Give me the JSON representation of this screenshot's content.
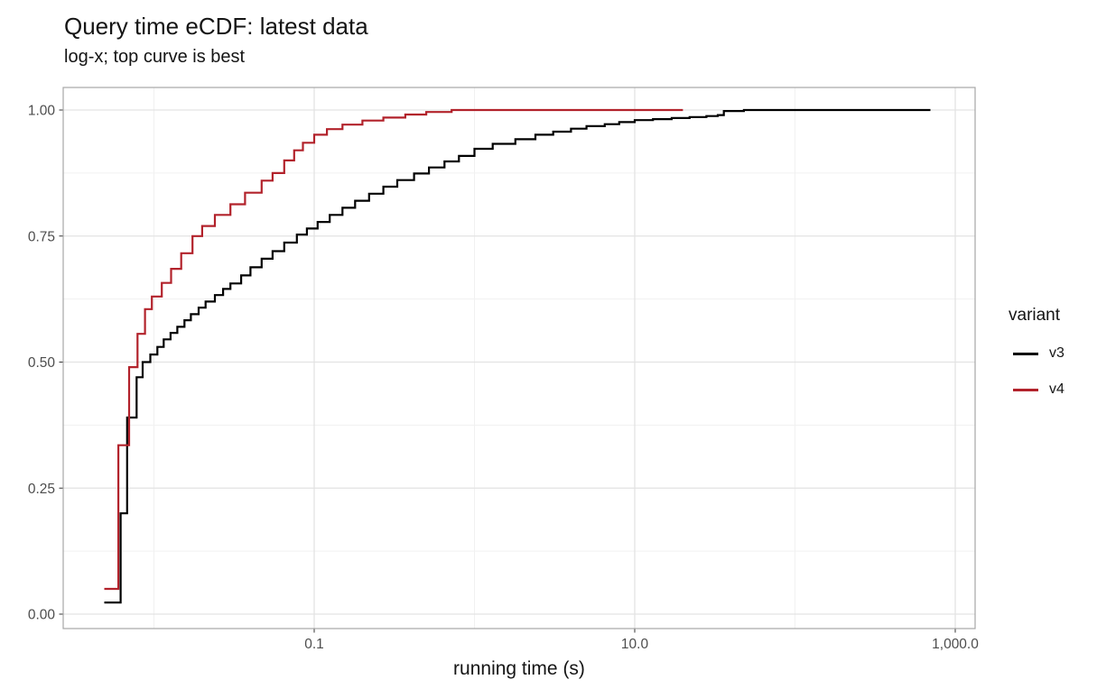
{
  "chart_data": {
    "type": "line",
    "subtype": "ecdf-step",
    "title": "Query time eCDF: latest data",
    "subtitle": "log-x; top curve is best",
    "xlabel": "running time (s)",
    "ylabel": "",
    "x_scale": "log10",
    "xlim": [
      0.0027,
      1330
    ],
    "ylim": [
      0,
      1
    ],
    "grid": "on",
    "x_axis": {
      "ticks": [
        {
          "value": 0.1,
          "label": "0.1"
        },
        {
          "value": 10,
          "label": "10.0"
        },
        {
          "value": 1000,
          "label": "1,000.0"
        }
      ],
      "minor_ticks": [
        0.01,
        1,
        100
      ]
    },
    "y_axis": {
      "ticks": [
        {
          "value": 0.0,
          "label": "0.00"
        },
        {
          "value": 0.25,
          "label": "0.25"
        },
        {
          "value": 0.5,
          "label": "0.50"
        },
        {
          "value": 0.75,
          "label": "0.75"
        },
        {
          "value": 1.0,
          "label": "1.00"
        }
      ],
      "minor_ticks": [
        0.125,
        0.375,
        0.625,
        0.875
      ]
    },
    "legend": {
      "title": "variant",
      "position": "right",
      "items": [
        {
          "label": "v3",
          "color": "#000000"
        },
        {
          "label": "v4",
          "color": "#B2222B"
        }
      ]
    },
    "series": [
      {
        "name": "v3",
        "color": "#000000",
        "points": [
          [
            0.0049,
            0.023
          ],
          [
            0.0062,
            0.2
          ],
          [
            0.0068,
            0.39
          ],
          [
            0.0078,
            0.47
          ],
          [
            0.0085,
            0.5
          ],
          [
            0.0095,
            0.515
          ],
          [
            0.0105,
            0.53
          ],
          [
            0.0115,
            0.545
          ],
          [
            0.0127,
            0.558
          ],
          [
            0.014,
            0.57
          ],
          [
            0.0155,
            0.583
          ],
          [
            0.017,
            0.595
          ],
          [
            0.019,
            0.608
          ],
          [
            0.021,
            0.62
          ],
          [
            0.024,
            0.633
          ],
          [
            0.027,
            0.645
          ],
          [
            0.03,
            0.656
          ],
          [
            0.035,
            0.672
          ],
          [
            0.04,
            0.688
          ],
          [
            0.047,
            0.705
          ],
          [
            0.055,
            0.72
          ],
          [
            0.065,
            0.737
          ],
          [
            0.078,
            0.753
          ],
          [
            0.09,
            0.765
          ],
          [
            0.105,
            0.778
          ],
          [
            0.125,
            0.792
          ],
          [
            0.15,
            0.806
          ],
          [
            0.18,
            0.82
          ],
          [
            0.22,
            0.834
          ],
          [
            0.27,
            0.848
          ],
          [
            0.33,
            0.861
          ],
          [
            0.42,
            0.874
          ],
          [
            0.52,
            0.886
          ],
          [
            0.65,
            0.898
          ],
          [
            0.8,
            0.909
          ],
          [
            1.0,
            0.923
          ],
          [
            1.3,
            0.933
          ],
          [
            1.8,
            0.942
          ],
          [
            2.4,
            0.951
          ],
          [
            3.1,
            0.957
          ],
          [
            4.0,
            0.963
          ],
          [
            5.0,
            0.968
          ],
          [
            6.5,
            0.972
          ],
          [
            8.0,
            0.976
          ],
          [
            10,
            0.98
          ],
          [
            13,
            0.982
          ],
          [
            17,
            0.984
          ],
          [
            22,
            0.986
          ],
          [
            28,
            0.988
          ],
          [
            33,
            0.99
          ],
          [
            36,
            0.998
          ],
          [
            48,
            1.0
          ],
          [
            700,
            1.0
          ]
        ]
      },
      {
        "name": "v4",
        "color": "#B2222B",
        "points": [
          [
            0.0049,
            0.05
          ],
          [
            0.006,
            0.335
          ],
          [
            0.007,
            0.49
          ],
          [
            0.0079,
            0.556
          ],
          [
            0.0088,
            0.605
          ],
          [
            0.0097,
            0.63
          ],
          [
            0.0112,
            0.657
          ],
          [
            0.0128,
            0.685
          ],
          [
            0.0148,
            0.716
          ],
          [
            0.0174,
            0.75
          ],
          [
            0.02,
            0.77
          ],
          [
            0.024,
            0.792
          ],
          [
            0.03,
            0.813
          ],
          [
            0.037,
            0.836
          ],
          [
            0.047,
            0.86
          ],
          [
            0.055,
            0.875
          ],
          [
            0.065,
            0.9
          ],
          [
            0.075,
            0.92
          ],
          [
            0.085,
            0.935
          ],
          [
            0.1,
            0.951
          ],
          [
            0.12,
            0.962
          ],
          [
            0.15,
            0.971
          ],
          [
            0.2,
            0.979
          ],
          [
            0.27,
            0.985
          ],
          [
            0.37,
            0.991
          ],
          [
            0.5,
            0.996
          ],
          [
            0.72,
            1.0
          ],
          [
            20,
            1.0
          ]
        ]
      }
    ],
    "colors": {
      "grid_major": "#E3E3E3",
      "grid_minor": "#F1F1F1",
      "panel_border": "#A6A6A6",
      "axis_text": "#4D4D4D",
      "tick_mark": "#333333",
      "text": "#151515"
    }
  }
}
